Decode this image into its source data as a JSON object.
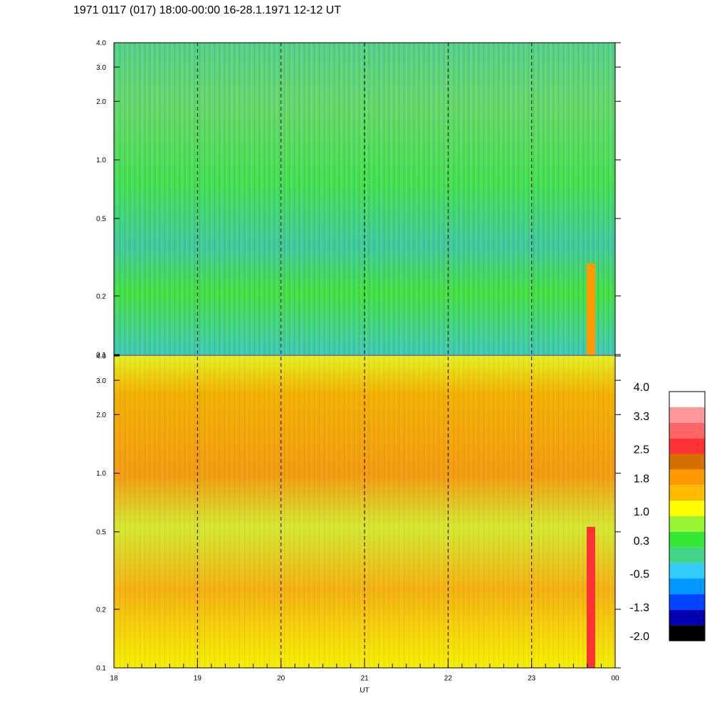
{
  "chart_data": {
    "type": "spectrogram",
    "title": "1971 0117 (017) 18:00-00:00 16-28.1.1971  12-12 UT",
    "xlabel": "UT",
    "xlim": [
      18,
      24
    ],
    "xticks": [
      18,
      19,
      20,
      21,
      22,
      23,
      {
        "value": 24,
        "label": "00"
      }
    ],
    "ylim": [
      0.1,
      4.0
    ],
    "yticks": [
      0.1,
      0.2,
      0.5,
      {
        "value": 1,
        "label": "1.0"
      },
      {
        "value": 2,
        "label": "2.0"
      },
      {
        "value": 3,
        "label": "3.0"
      },
      {
        "value": 4,
        "label": "4.0"
      }
    ],
    "log_y": true,
    "colorbar": {
      "lim": [
        -2.0,
        4.0
      ],
      "ticks": [
        {
          "value": 4,
          "label": "4.0"
        },
        3.3,
        2.5,
        1.8,
        {
          "value": 1,
          "label": "1.0"
        },
        0.3,
        -0.5,
        -1.3,
        {
          "value": -2,
          "label": "-2.0"
        }
      ],
      "colors": [
        "#000000",
        "#0000b0",
        "#0044ff",
        "#0099ff",
        "#33ccff",
        "#44d488",
        "#33e833",
        "#99f533",
        "#ffff00",
        "#ffbb00",
        "#ff9900",
        "#d47000",
        "#ff3333",
        "#ff6666",
        "#ff9999",
        "#ffffff"
      ]
    }
  }
}
